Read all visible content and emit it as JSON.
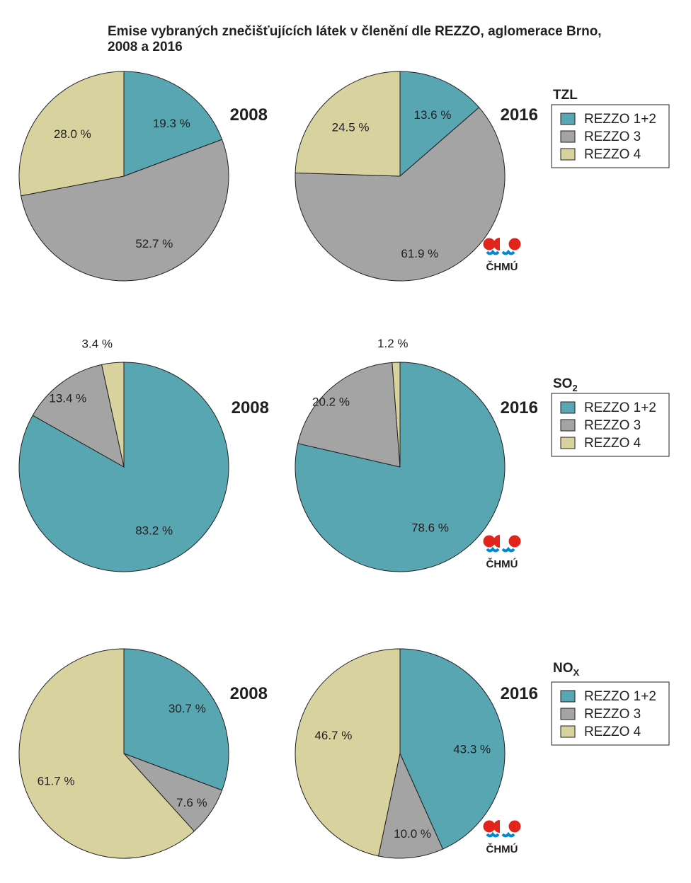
{
  "title_line1": "Emise vybraných znečišťujících látek v členění dle REZZO, aglomerace Brno,",
  "title_line2": "2008 a 2016",
  "logo_text": "ČHMÚ",
  "legend_labels": [
    "REZZO 1+2",
    "REZZO 3",
    "REZZO 4"
  ],
  "colors": {
    "REZZO 1+2": "#58a6b1",
    "REZZO 3": "#a3a4a3",
    "REZZO 4": "#d8d29e"
  },
  "chart_data": [
    {
      "type": "pie",
      "pollutant": "TZL",
      "title": "2008",
      "slices": [
        {
          "name": "REZZO 1+2",
          "value": 19.3,
          "label": "19.3 %"
        },
        {
          "name": "REZZO 3",
          "value": 52.7,
          "label": "52.7 %"
        },
        {
          "name": "REZZO 4",
          "value": 28.0,
          "label": "28.0 %"
        }
      ]
    },
    {
      "type": "pie",
      "pollutant": "TZL",
      "title": "2016",
      "slices": [
        {
          "name": "REZZO 1+2",
          "value": 13.6,
          "label": "13.6 %"
        },
        {
          "name": "REZZO 3",
          "value": 61.9,
          "label": "61.9 %"
        },
        {
          "name": "REZZO 4",
          "value": 24.5,
          "label": "24.5 %"
        }
      ]
    },
    {
      "type": "pie",
      "pollutant": "SO2",
      "title": "2008",
      "slices": [
        {
          "name": "REZZO 1+2",
          "value": 83.2,
          "label": "83.2 %"
        },
        {
          "name": "REZZO 3",
          "value": 13.4,
          "label": "13.4 %"
        },
        {
          "name": "REZZO 4",
          "value": 3.4,
          "label": "3.4 %"
        }
      ]
    },
    {
      "type": "pie",
      "pollutant": "SO2",
      "title": "2016",
      "slices": [
        {
          "name": "REZZO 1+2",
          "value": 78.6,
          "label": "78.6 %"
        },
        {
          "name": "REZZO 3",
          "value": 20.2,
          "label": "20.2 %"
        },
        {
          "name": "REZZO 4",
          "value": 1.2,
          "label": "1.2 %"
        }
      ]
    },
    {
      "type": "pie",
      "pollutant": "NOX",
      "title": "2008",
      "slices": [
        {
          "name": "REZZO 1+2",
          "value": 30.7,
          "label": "30.7 %"
        },
        {
          "name": "REZZO 3",
          "value": 7.6,
          "label": "7.6 %"
        },
        {
          "name": "REZZO 4",
          "value": 61.7,
          "label": "61.7 %"
        }
      ]
    },
    {
      "type": "pie",
      "pollutant": "NOX",
      "title": "2016",
      "slices": [
        {
          "name": "REZZO 1+2",
          "value": 43.3,
          "label": "43.3 %"
        },
        {
          "name": "REZZO 3",
          "value": 10.0,
          "label": "10.0 %"
        },
        {
          "name": "REZZO 4",
          "value": 46.7,
          "label": "46.7 %"
        }
      ]
    }
  ],
  "legends": [
    {
      "main": "TZL",
      "sub": "",
      "labels": [
        "REZZO 1+2",
        "REZZO 3",
        "REZZO 4"
      ]
    },
    {
      "main": "SO",
      "sub": "2",
      "labels": [
        "REZZO 1+2",
        "REZZO 3",
        "REZZO 4"
      ]
    },
    {
      "main": "NO",
      "sub": "X",
      "labels": [
        "REZZO 1+2",
        "REZZO 3",
        "REZZO 4"
      ]
    }
  ]
}
